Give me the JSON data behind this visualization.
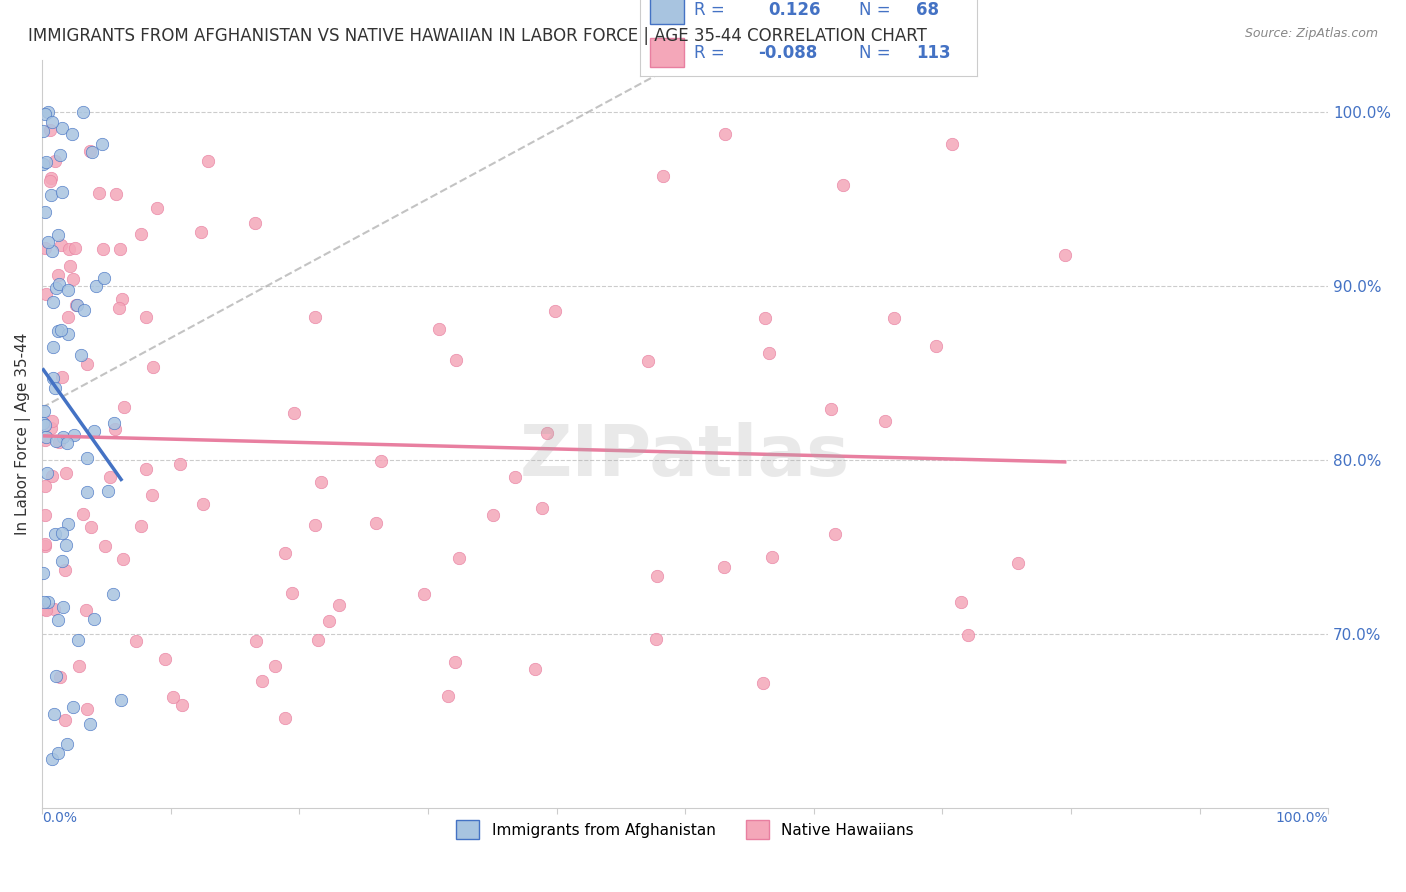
{
  "title": "IMMIGRANTS FROM AFGHANISTAN VS NATIVE HAWAIIAN IN LABOR FORCE | AGE 35-44 CORRELATION CHART",
  "source": "Source: ZipAtlas.com",
  "ylabel": "In Labor Force | Age 35-44",
  "R_afghan": 0.126,
  "N_afghan": 68,
  "R_hawaiian": -0.088,
  "N_hawaiian": 113,
  "color_afghan": "#a8c4e0",
  "color_afghan_line": "#4472c4",
  "color_hawaiian": "#f4a7b9",
  "color_hawaiian_line": "#e87fa0",
  "color_text": "#4472c4",
  "watermark": "ZIPatlas",
  "xlim": [
    0.0,
    1.0
  ],
  "ylim": [
    0.6,
    1.03
  ]
}
